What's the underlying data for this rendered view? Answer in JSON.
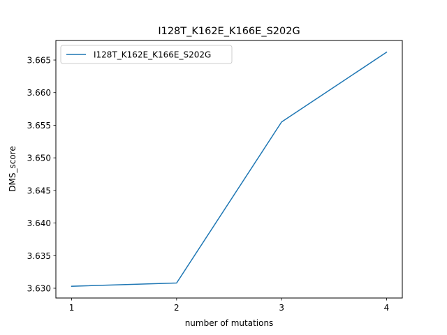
{
  "chart_data": {
    "type": "line",
    "title": "I128T_K162E_K166E_S202G",
    "xlabel": "number of mutations",
    "ylabel": "DMS_score",
    "x": [
      1,
      2,
      3,
      4
    ],
    "series": [
      {
        "name": "I128T_K162E_K166E_S202G",
        "values": [
          3.6303,
          3.6308,
          3.6555,
          3.6662
        ],
        "color": "#1f77b4"
      }
    ],
    "xticks": [
      "1",
      "2",
      "3",
      "4"
    ],
    "yticks": [
      "3.630",
      "3.635",
      "3.640",
      "3.645",
      "3.650",
      "3.655",
      "3.660",
      "3.665"
    ],
    "xlim": [
      0.85,
      4.15
    ],
    "ylim": [
      3.6285,
      3.668
    ],
    "grid": false,
    "legend": "top-left"
  }
}
